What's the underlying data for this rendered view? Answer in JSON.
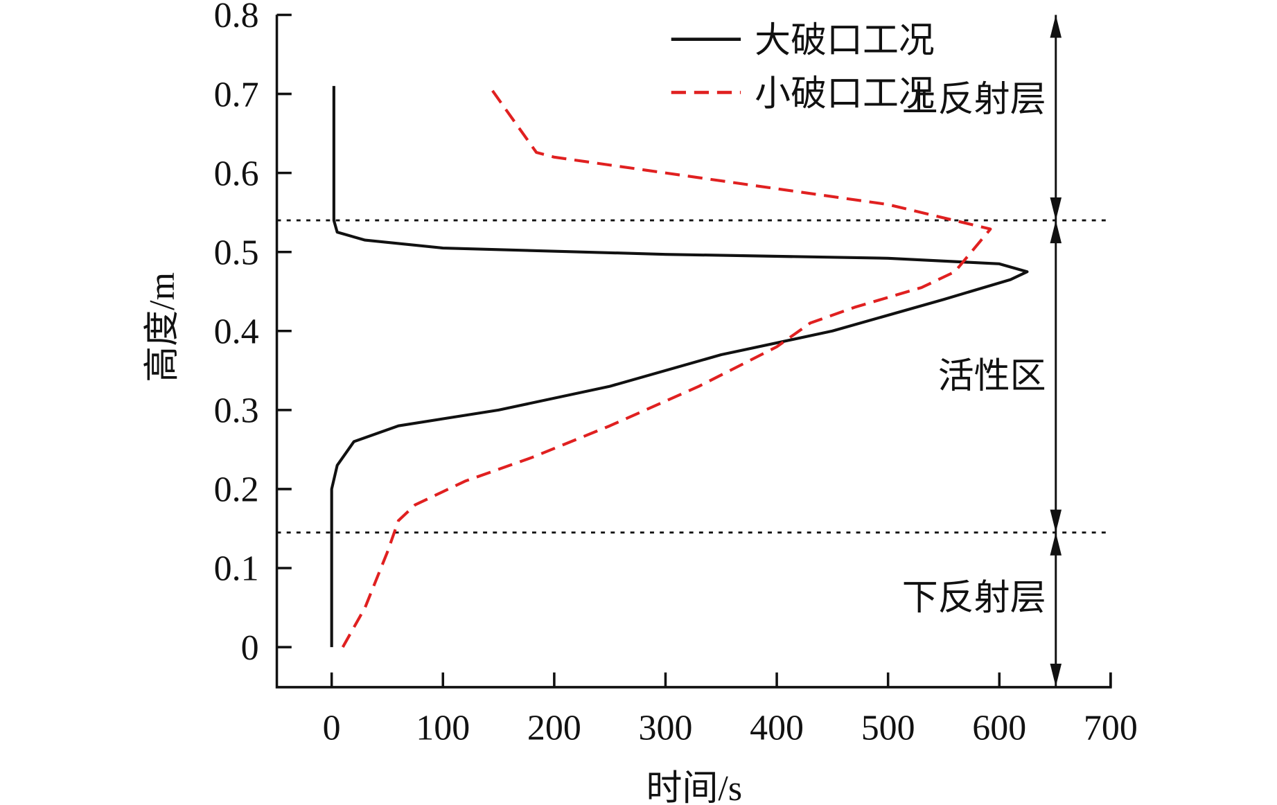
{
  "chart_data": {
    "type": "line",
    "title": "",
    "xlabel": "时间/s",
    "ylabel": "高度/m",
    "xlim": [
      -50,
      700
    ],
    "ylim": [
      -0.05,
      0.8
    ],
    "xticks": [
      "0",
      "100",
      "200",
      "300",
      "400",
      "500",
      "600",
      "700"
    ],
    "yticks": [
      "0",
      "0.1",
      "0.2",
      "0.3",
      "0.4",
      "0.5",
      "0.6",
      "0.7",
      "0.8"
    ],
    "legend_position": "top-right",
    "series": [
      {
        "name": "大破口工况",
        "style": "solid",
        "color": "#111111",
        "points": [
          [
            0,
            0
          ],
          [
            0,
            0.2
          ],
          [
            5,
            0.23
          ],
          [
            20,
            0.26
          ],
          [
            60,
            0.28
          ],
          [
            150,
            0.3
          ],
          [
            250,
            0.33
          ],
          [
            350,
            0.37
          ],
          [
            450,
            0.4
          ],
          [
            550,
            0.44
          ],
          [
            610,
            0.465
          ],
          [
            625,
            0.475
          ],
          [
            600,
            0.485
          ],
          [
            500,
            0.492
          ],
          [
            300,
            0.497
          ],
          [
            100,
            0.505
          ],
          [
            30,
            0.515
          ],
          [
            5,
            0.525
          ],
          [
            2,
            0.54
          ],
          [
            2,
            0.71
          ]
        ]
      },
      {
        "name": "小破口工况",
        "style": "dashed",
        "color": "#e02020",
        "points": [
          [
            10,
            0
          ],
          [
            30,
            0.05
          ],
          [
            50,
            0.12
          ],
          [
            60,
            0.16
          ],
          [
            75,
            0.18
          ],
          [
            120,
            0.21
          ],
          [
            180,
            0.24
          ],
          [
            250,
            0.28
          ],
          [
            330,
            0.33
          ],
          [
            400,
            0.38
          ],
          [
            430,
            0.41
          ],
          [
            470,
            0.43
          ],
          [
            530,
            0.455
          ],
          [
            560,
            0.475
          ],
          [
            592,
            0.529
          ],
          [
            500,
            0.56
          ],
          [
            400,
            0.58
          ],
          [
            300,
            0.6
          ],
          [
            200,
            0.62
          ],
          [
            184,
            0.626
          ],
          [
            143,
            0.707
          ]
        ]
      }
    ],
    "reference_lines": [
      0.54,
      0.145
    ],
    "zones": [
      {
        "label": "上反射层",
        "from": 0.54,
        "to": 0.8
      },
      {
        "label": "活性区",
        "from": 0.145,
        "to": 0.54
      },
      {
        "label": "下反射层",
        "from": -0.05,
        "to": 0.145
      }
    ]
  }
}
